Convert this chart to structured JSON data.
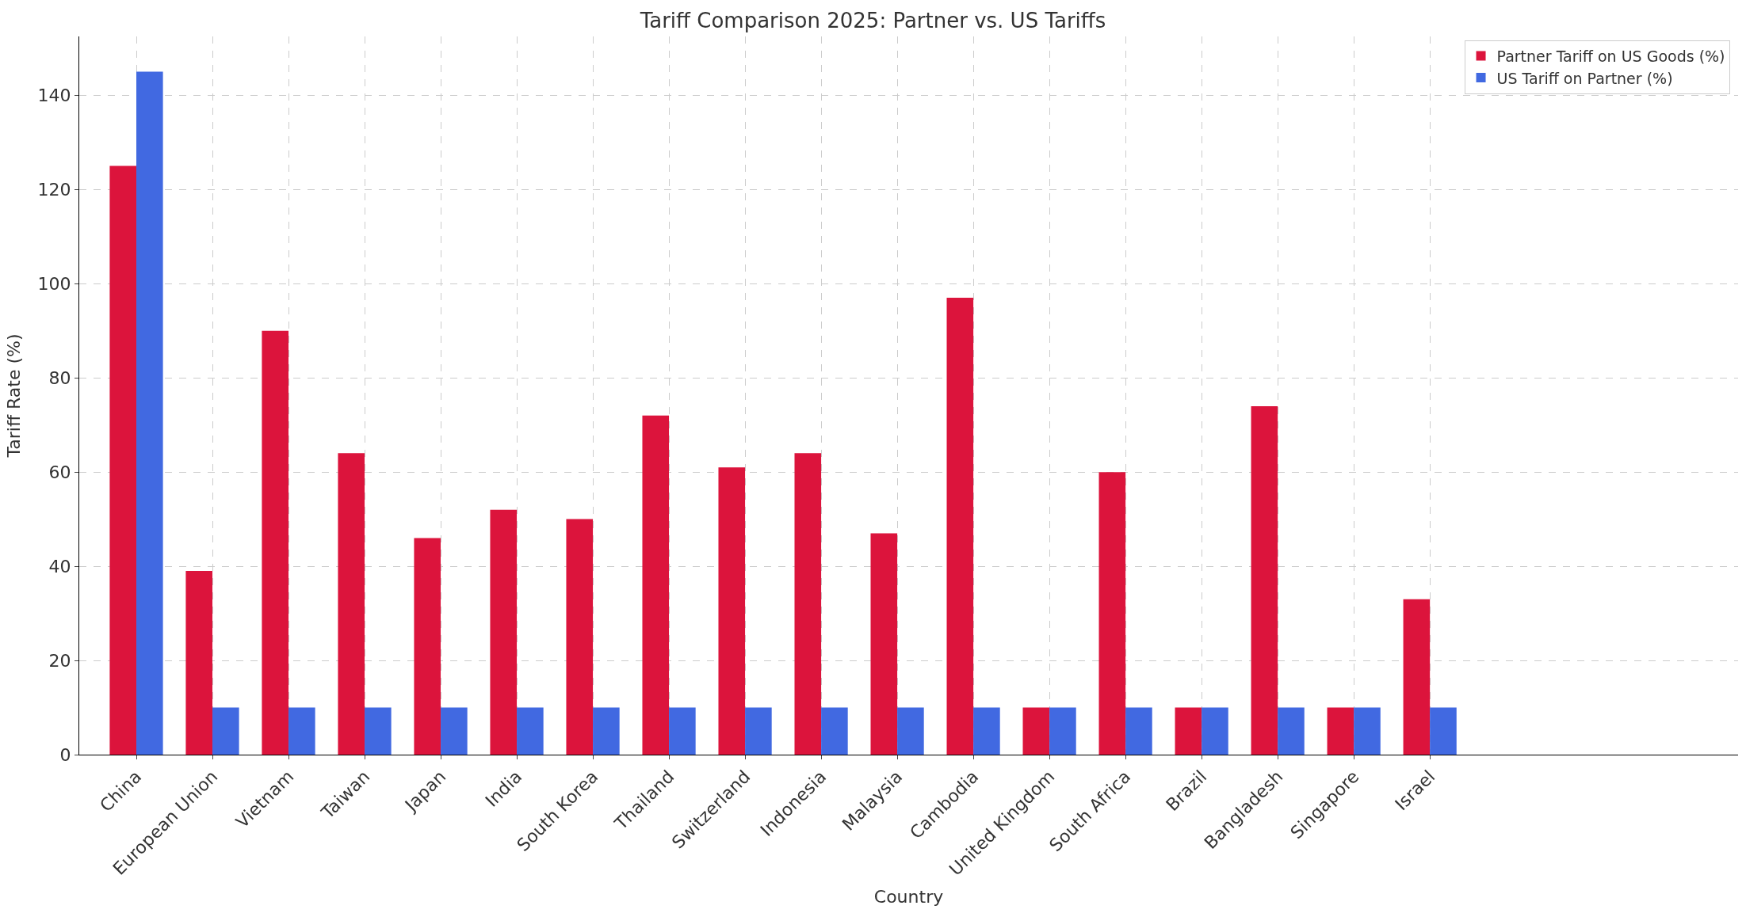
{
  "chart_data": {
    "type": "bar",
    "title": "Tariff Comparison 2025: Partner vs. US Tariffs",
    "xlabel": "Country",
    "ylabel": "Tariff Rate (%)",
    "categories": [
      "China",
      "European Union",
      "Vietnam",
      "Taiwan",
      "Japan",
      "India",
      "South Korea",
      "Thailand",
      "Switzerland",
      "Indonesia",
      "Malaysia",
      "Cambodia",
      "United Kingdom",
      "South Africa",
      "Brazil",
      "Bangladesh",
      "Singapore",
      "Israel"
    ],
    "series": [
      {
        "name": "Partner Tariff on US Goods (%)",
        "color": "#dc143c",
        "values": [
          125,
          39,
          90,
          64,
          46,
          52,
          50,
          72,
          61,
          64,
          47,
          97,
          10,
          60,
          10,
          74,
          10,
          33
        ]
      },
      {
        "name": "US Tariff on Partner (%)",
        "color": "#4169e1",
        "values": [
          145,
          10,
          10,
          10,
          10,
          10,
          10,
          10,
          10,
          10,
          10,
          10,
          10,
          10,
          10,
          10,
          10,
          10
        ]
      }
    ],
    "ylim": [
      0,
      152.5
    ],
    "yticks": [
      0,
      20,
      40,
      60,
      80,
      100,
      120,
      140
    ],
    "grid": true,
    "legend": "top right"
  }
}
